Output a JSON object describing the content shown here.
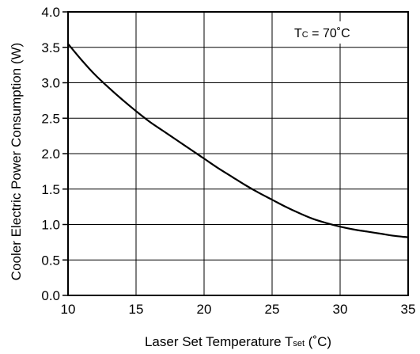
{
  "chart_data": {
    "type": "line",
    "xlabel": {
      "main": "Laser Set Temperature T",
      "subscript": "set",
      "unit": " (˚C)"
    },
    "ylabel": "Cooler Electric Power Consumption  (W)",
    "xlim": [
      10,
      35
    ],
    "ylim": [
      0.0,
      4.0
    ],
    "x_ticks": [
      "10",
      "15",
      "20",
      "25",
      "30",
      "35"
    ],
    "y_ticks": [
      "0.0",
      "0.5",
      "1.0",
      "1.5",
      "2.0",
      "2.5",
      "3.0",
      "3.5",
      "4.0"
    ],
    "grid": true,
    "annotation": {
      "prefix": "T",
      "subscript": "C",
      "value": " = 70˚C"
    },
    "series": [
      {
        "x": [
          10,
          11,
          12,
          13,
          14,
          15,
          16,
          17,
          18,
          19,
          20,
          21,
          22,
          23,
          24,
          25,
          26,
          27,
          28,
          29,
          30,
          31,
          32,
          33,
          34,
          35
        ],
        "y": [
          3.55,
          3.32,
          3.11,
          2.93,
          2.76,
          2.6,
          2.45,
          2.32,
          2.19,
          2.06,
          1.93,
          1.8,
          1.68,
          1.56,
          1.45,
          1.35,
          1.25,
          1.16,
          1.08,
          1.02,
          0.97,
          0.93,
          0.9,
          0.87,
          0.84,
          0.82
        ]
      }
    ]
  }
}
